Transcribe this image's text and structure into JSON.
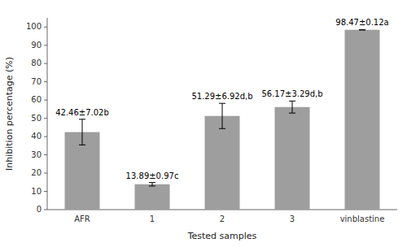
{
  "chart_data": {
    "type": "bar",
    "categories": [
      "AFR",
      "1",
      "2",
      "3",
      "vinblastine"
    ],
    "values": [
      42.46,
      13.89,
      51.29,
      56.17,
      98.47
    ],
    "errors": [
      7.02,
      0.97,
      6.92,
      3.29,
      0.12
    ],
    "value_labels": [
      "42.46±7.02b",
      "13.89±0.97c",
      "51.29±6.92d,b",
      "56.17±3.29d,b",
      "98.47±0.12a"
    ],
    "data_labels": true,
    "color": "#9e9e9e",
    "xlabel": "Tested samples",
    "ylabel": "Inhibition percentage (%)",
    "ylim": [
      0,
      105
    ],
    "yticks": [
      0,
      10,
      20,
      30,
      40,
      50,
      60,
      70,
      80,
      90,
      100
    ],
    "grid": false
  }
}
